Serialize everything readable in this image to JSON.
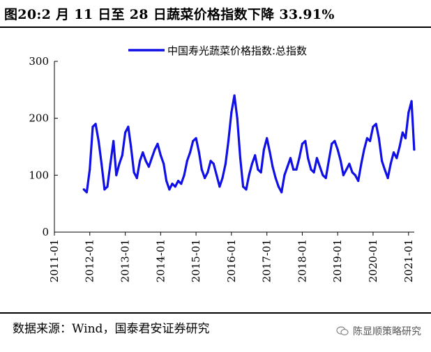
{
  "title": "图20:2 月 11 日至 28 日蔬菜价格指数下降 33.91%",
  "source": "数据来源：Wind，国泰君安证券研究",
  "watermark": "陈显顺策略研究",
  "colors": {
    "series": "#1010E6",
    "text": "#000000",
    "axis": "#000000"
  },
  "chart_data": {
    "type": "line",
    "title": "图20:2 月 11 日至 28 日蔬菜价格指数下降 33.91%",
    "xlabel": "",
    "ylabel": "",
    "ylim": [
      0,
      300
    ],
    "yticks": [
      0,
      100,
      200,
      300
    ],
    "xticks": [
      "2011-01",
      "2012-01",
      "2013-01",
      "2014-01",
      "2015-01",
      "2016-01",
      "2017-01",
      "2018-01",
      "2019-01",
      "2020-01",
      "2021-01"
    ],
    "xrange": [
      "2011-01-01",
      "2021-03-01"
    ],
    "legend_position": "top-center",
    "grid": false,
    "series": [
      {
        "name": "中国寿光蔬菜价格指数:总指数",
        "color": "#1010E6",
        "x": [
          "2011-11-01",
          "2011-12-01",
          "2012-01-01",
          "2012-02-01",
          "2012-03-01",
          "2012-04-01",
          "2012-05-01",
          "2012-06-01",
          "2012-07-01",
          "2012-08-01",
          "2012-09-01",
          "2012-10-01",
          "2012-11-01",
          "2012-12-01",
          "2013-01-01",
          "2013-02-01",
          "2013-03-01",
          "2013-04-01",
          "2013-05-01",
          "2013-06-01",
          "2013-07-01",
          "2013-08-01",
          "2013-09-01",
          "2013-10-01",
          "2013-11-01",
          "2013-12-01",
          "2014-01-01",
          "2014-02-01",
          "2014-03-01",
          "2014-04-01",
          "2014-05-01",
          "2014-06-01",
          "2014-07-01",
          "2014-08-01",
          "2014-09-01",
          "2014-10-01",
          "2014-11-01",
          "2014-12-01",
          "2015-01-01",
          "2015-02-01",
          "2015-03-01",
          "2015-04-01",
          "2015-05-01",
          "2015-06-01",
          "2015-07-01",
          "2015-08-01",
          "2015-09-01",
          "2015-10-01",
          "2015-11-01",
          "2015-12-01",
          "2016-01-01",
          "2016-02-01",
          "2016-03-01",
          "2016-04-01",
          "2016-05-01",
          "2016-06-01",
          "2016-07-01",
          "2016-08-01",
          "2016-09-01",
          "2016-10-01",
          "2016-11-01",
          "2016-12-01",
          "2017-01-01",
          "2017-02-01",
          "2017-03-01",
          "2017-04-01",
          "2017-05-01",
          "2017-06-01",
          "2017-07-01",
          "2017-08-01",
          "2017-09-01",
          "2017-10-01",
          "2017-11-01",
          "2017-12-01",
          "2018-01-01",
          "2018-02-01",
          "2018-03-01",
          "2018-04-01",
          "2018-05-01",
          "2018-06-01",
          "2018-07-01",
          "2018-08-01",
          "2018-09-01",
          "2018-10-01",
          "2018-11-01",
          "2018-12-01",
          "2019-01-01",
          "2019-02-01",
          "2019-03-01",
          "2019-04-01",
          "2019-05-01",
          "2019-06-01",
          "2019-07-01",
          "2019-08-01",
          "2019-09-01",
          "2019-10-01",
          "2019-11-01",
          "2019-12-01",
          "2020-01-01",
          "2020-02-01",
          "2020-03-01",
          "2020-04-01",
          "2020-05-01",
          "2020-06-01",
          "2020-07-01",
          "2020-08-01",
          "2020-09-01",
          "2020-10-01",
          "2020-11-01",
          "2020-12-01",
          "2021-01-01",
          "2021-02-01",
          "2021-02-28"
        ],
        "values": [
          75,
          70,
          110,
          185,
          190,
          160,
          120,
          75,
          80,
          120,
          160,
          100,
          120,
          135,
          175,
          185,
          150,
          105,
          95,
          125,
          140,
          125,
          115,
          130,
          145,
          155,
          135,
          120,
          90,
          75,
          85,
          80,
          90,
          85,
          100,
          125,
          140,
          160,
          165,
          140,
          110,
          95,
          105,
          125,
          120,
          100,
          80,
          95,
          120,
          160,
          210,
          240,
          200,
          130,
          80,
          75,
          100,
          120,
          135,
          110,
          105,
          145,
          165,
          140,
          115,
          95,
          80,
          70,
          100,
          115,
          130,
          110,
          110,
          130,
          155,
          160,
          130,
          110,
          105,
          130,
          115,
          100,
          95,
          125,
          155,
          160,
          145,
          125,
          100,
          110,
          120,
          105,
          100,
          90,
          120,
          145,
          165,
          160,
          185,
          190,
          165,
          125,
          110,
          95,
          120,
          140,
          130,
          150,
          175,
          165,
          210,
          230,
          145
        ]
      }
    ]
  }
}
